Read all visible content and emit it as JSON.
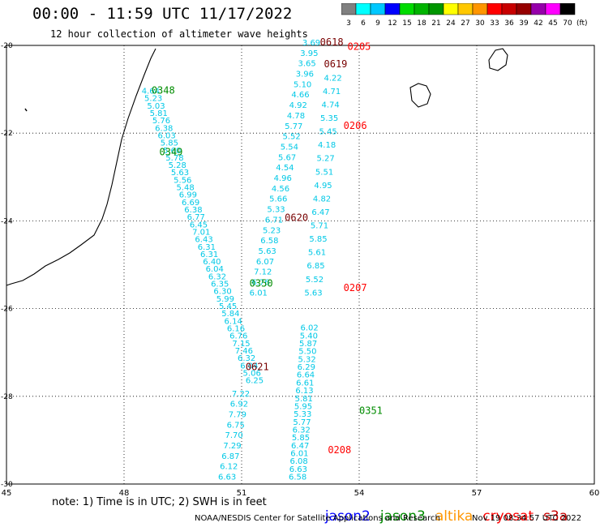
{
  "header": {
    "title": "00:00 - 11:59 UTC 11/17/2022",
    "subtitle": "12 hour collection of altimeter wave heights"
  },
  "legend": {
    "unit": "(ft)",
    "bins": [
      {
        "label": "3",
        "color": "#808080"
      },
      {
        "label": "6",
        "color": "#00ffff"
      },
      {
        "label": "9",
        "color": "#00c8ff"
      },
      {
        "label": "12",
        "color": "#0000ff"
      },
      {
        "label": "15",
        "color": "#00dc00"
      },
      {
        "label": "18",
        "color": "#00b400"
      },
      {
        "label": "21",
        "color": "#009600"
      },
      {
        "label": "24",
        "color": "#ffff00"
      },
      {
        "label": "27",
        "color": "#ffc800"
      },
      {
        "label": "30",
        "color": "#ff9600"
      },
      {
        "label": "33",
        "color": "#ff0000"
      },
      {
        "label": "36",
        "color": "#c80000"
      },
      {
        "label": "39",
        "color": "#960000"
      },
      {
        "label": "42",
        "color": "#9600aa"
      },
      {
        "label": "45",
        "color": "#ff00ff"
      },
      {
        "label": "70",
        "color": "#000000"
      }
    ]
  },
  "axes": {
    "lon_labels": [
      "45",
      "48",
      "51",
      "54",
      "57",
      "60"
    ],
    "lat_labels": [
      "-20",
      "-22",
      "-24",
      "-26",
      "-28",
      "-30"
    ],
    "lon_range": [
      45,
      60
    ],
    "lat_range": [
      -20,
      -30
    ]
  },
  "colors": {
    "coast": "#000000",
    "grid": "#000000",
    "cyan": "#00c8e6",
    "jason3": "#008c00",
    "cryosat": "#ff0000",
    "dark_red": "#780000"
  },
  "passes": [
    {
      "label": "0348",
      "lon": 48.7,
      "lat": -21.1,
      "color": "jason3"
    },
    {
      "label": "0349",
      "lon": 48.9,
      "lat": -22.5,
      "color": "jason3"
    },
    {
      "label": "0350",
      "lon": 51.2,
      "lat": -25.5,
      "color": "jason3"
    },
    {
      "label": "0351",
      "lon": 54.0,
      "lat": -28.4,
      "color": "jason3"
    },
    {
      "label": "0618",
      "lon": 53.0,
      "lat": -20.0,
      "color": "dark_red"
    },
    {
      "label": "0619",
      "lon": 53.1,
      "lat": -20.5,
      "color": "dark_red"
    },
    {
      "label": "0620",
      "lon": 52.1,
      "lat": -24.0,
      "color": "dark_red"
    },
    {
      "label": "0621",
      "lon": 51.1,
      "lat": -27.4,
      "color": "dark_red"
    },
    {
      "label": "0205",
      "lon": 53.7,
      "lat": -20.1,
      "color": "cryosat"
    },
    {
      "label": "0206",
      "lon": 53.6,
      "lat": -21.9,
      "color": "cryosat"
    },
    {
      "label": "0207",
      "lon": 53.6,
      "lat": -25.6,
      "color": "cryosat"
    },
    {
      "label": "0208",
      "lon": 53.2,
      "lat": -29.3,
      "color": "cryosat"
    }
  ],
  "tracks": [
    {
      "color": "cyan",
      "values": [
        "4.64",
        "5.23",
        "5.03",
        "5.81",
        "5.76",
        "6.38",
        "6.03",
        "5.85",
        "5.60",
        "5.78",
        "5.28",
        "5.63",
        "5.56",
        "5.48",
        "6.99",
        "6.69",
        "6.38",
        "6.77",
        "6.45",
        "7.01",
        "6.43",
        "6.31",
        "6.31",
        "6.40",
        "6.04",
        "6.32",
        "6.35",
        "6.30",
        "5.99",
        "5.45",
        "5.84",
        "6.14",
        "6.16",
        "6.76",
        "7.15",
        "7.46",
        "6.32",
        "6.04",
        "5.06",
        "6.25"
      ],
      "lon0": 48.45,
      "lat0": -21.1,
      "lon1": 51.1,
      "lat1": -27.7
    },
    {
      "color": "cyan",
      "values": [
        "7.22",
        "6.92",
        "7.79",
        "6.75",
        "7.70",
        "7.29",
        "6.87",
        "6.12",
        "6.63"
      ],
      "lon0": 50.75,
      "lat0": -28.0,
      "lon1": 50.4,
      "lat1": -29.9
    },
    {
      "color": "cyan",
      "values": [
        "3.69",
        "3.95",
        "3.65",
        "3.96",
        "5.10",
        "4.66",
        "4.92",
        "4.78",
        "5.77",
        "5.52",
        "5.54",
        "5.67",
        "4.54",
        "4.96",
        "4.56",
        "5.66",
        "5.33",
        "6.71",
        "5.23",
        "6.58",
        "5.63",
        "6.07",
        "7.12",
        "6.76",
        "6.01"
      ],
      "lon0": 52.55,
      "lat0": -20.0,
      "lon1": 51.2,
      "lat1": -25.7
    },
    {
      "color": "cyan",
      "values": [
        "4.22",
        "4.71",
        "4.74",
        "5.35",
        "5.45",
        "4.18",
        "5.27",
        "5.51",
        "4.95",
        "4.82",
        "6.47",
        "5.71",
        "5.85",
        "5.61",
        "6.85",
        "5.52",
        "5.63"
      ],
      "lon0": 53.1,
      "lat0": -20.8,
      "lon1": 52.6,
      "lat1": -25.7
    },
    {
      "color": "cyan",
      "values": [
        "6.02",
        "5.40",
        "5.87",
        "5.50",
        "5.32",
        "6.29",
        "6.64",
        "6.61",
        "6.13",
        "5.81",
        "5.95",
        "5.33",
        "5.77",
        "6.32",
        "5.85",
        "6.47",
        "6.01",
        "6.08",
        "6.63",
        "6.58"
      ],
      "lon0": 52.5,
      "lat0": -26.5,
      "lon1": 52.2,
      "lat1": -29.9
    }
  ],
  "footer": {
    "note": "note: 1) Time is in UTC; 2) SWH is in feet",
    "satellites": [
      {
        "name": "jason2",
        "color": "#0000ff"
      },
      {
        "name": "jason3",
        "color": "#008c00"
      },
      {
        "name": "altika",
        "color": "#ff9600"
      },
      {
        "name": "cryosat",
        "color": "#ff0000"
      },
      {
        "name": "s3a",
        "color": "#c80000"
      }
    ],
    "credit": "NOAA/NESDIS Center for Satellite Applications and Research",
    "timestamp": "Nov 19 08:34:57 UTC 2022"
  }
}
